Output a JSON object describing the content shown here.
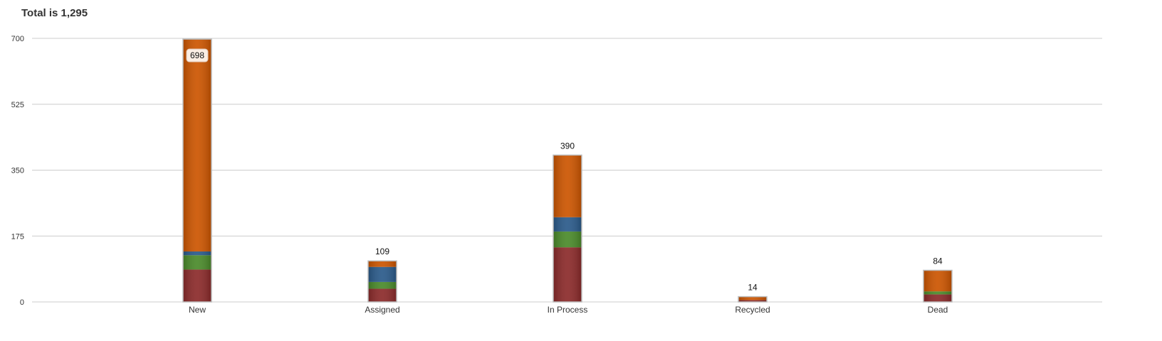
{
  "chart_data": {
    "type": "bar",
    "stacked": true,
    "title": "Total is 1,295",
    "xlabel": "",
    "ylabel": "",
    "ylim": [
      0,
      700
    ],
    "yticks": [
      0,
      175,
      350,
      525,
      700
    ],
    "categories": [
      "New",
      "Assigned",
      "In Process",
      "Recycled",
      "Dead"
    ],
    "totals": [
      698,
      109,
      390,
      14,
      84
    ],
    "total_labels": [
      "698",
      "109",
      "390",
      "14",
      "84"
    ],
    "series": [
      {
        "values": [
          86,
          35,
          145,
          5,
          20
        ],
        "color": "#8b2a2a"
      },
      {
        "values": [
          38,
          18,
          42,
          0,
          8
        ],
        "color": "#4a8a2a"
      },
      {
        "values": [
          10,
          40,
          38,
          0,
          0
        ],
        "color": "#2a5a8a"
      },
      {
        "values": [
          564,
          16,
          165,
          9,
          56
        ],
        "color": "#cc5500"
      }
    ],
    "grid": true,
    "legend": "none"
  }
}
